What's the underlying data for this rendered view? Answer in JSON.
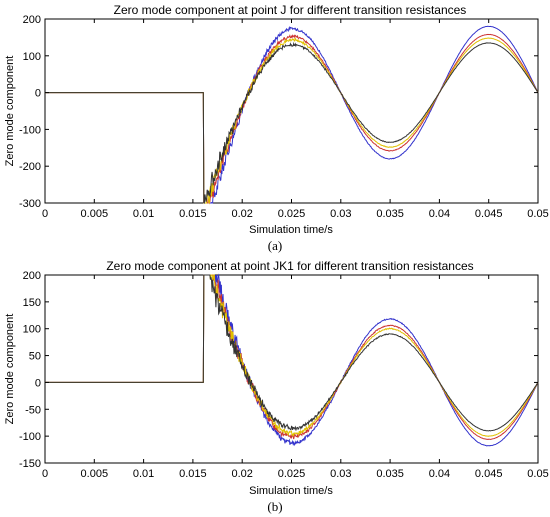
{
  "chart_data": [
    {
      "type": "line",
      "caption": "(a)",
      "title": "Zero mode component at point J for different transition resistances",
      "xlabel": "Simulation time/s",
      "ylabel": "Zero mode component",
      "xlim": [
        0,
        0.05
      ],
      "ylim": [
        -300,
        200
      ],
      "xticks": [
        0,
        0.005,
        0.01,
        0.015,
        0.02,
        0.025,
        0.03,
        0.035,
        0.04,
        0.045,
        0.05
      ],
      "xtick_labels": [
        "0",
        "0.005",
        "0.01",
        "0.015",
        "0.02",
        "0.025",
        "0.03",
        "0.035",
        "0.04",
        "0.045",
        "0.05"
      ],
      "yticks": [
        -300,
        -200,
        -100,
        0,
        100,
        200
      ],
      "ytick_labels": [
        "-300",
        "-200",
        "-100",
        "0",
        "100",
        "200"
      ],
      "fault_time": 0.0161,
      "grid": false,
      "series": [
        {
          "color": "#3333cc",
          "amplitude": 180,
          "sign": 1,
          "transient": -220
        },
        {
          "color": "#cc3333",
          "amplitude": 158,
          "sign": 1,
          "transient": -200
        },
        {
          "color": "#e0c000",
          "amplitude": 148,
          "sign": 1,
          "transient": -190
        },
        {
          "color": "#333333",
          "amplitude": 135,
          "sign": 1,
          "transient": -180
        }
      ]
    },
    {
      "type": "line",
      "caption": "(b)",
      "title": "Zero mode component at point JK1 for different transition resistances",
      "xlabel": "Simulation time/s",
      "ylabel": "Zero mode component",
      "xlim": [
        0,
        0.05
      ],
      "ylim": [
        -150,
        200
      ],
      "xticks": [
        0,
        0.005,
        0.01,
        0.015,
        0.02,
        0.025,
        0.03,
        0.035,
        0.04,
        0.045,
        0.05
      ],
      "xtick_labels": [
        "0",
        "0.005",
        "0.01",
        "0.015",
        "0.02",
        "0.025",
        "0.03",
        "0.035",
        "0.04",
        "0.045",
        "0.05"
      ],
      "yticks": [
        -150,
        -100,
        -50,
        0,
        50,
        100,
        150,
        200
      ],
      "ytick_labels": [
        "-150",
        "-100",
        "-50",
        "0",
        "50",
        "100",
        "150",
        "200"
      ],
      "fault_time": 0.0161,
      "grid": false,
      "series": [
        {
          "color": "#3333cc",
          "amplitude": 118,
          "sign": -1,
          "transient": 190
        },
        {
          "color": "#cc3333",
          "amplitude": 106,
          "sign": -1,
          "transient": 175
        },
        {
          "color": "#e0c000",
          "amplitude": 100,
          "sign": -1,
          "transient": 165
        },
        {
          "color": "#333333",
          "amplitude": 90,
          "sign": -1,
          "transient": 155
        }
      ]
    }
  ]
}
